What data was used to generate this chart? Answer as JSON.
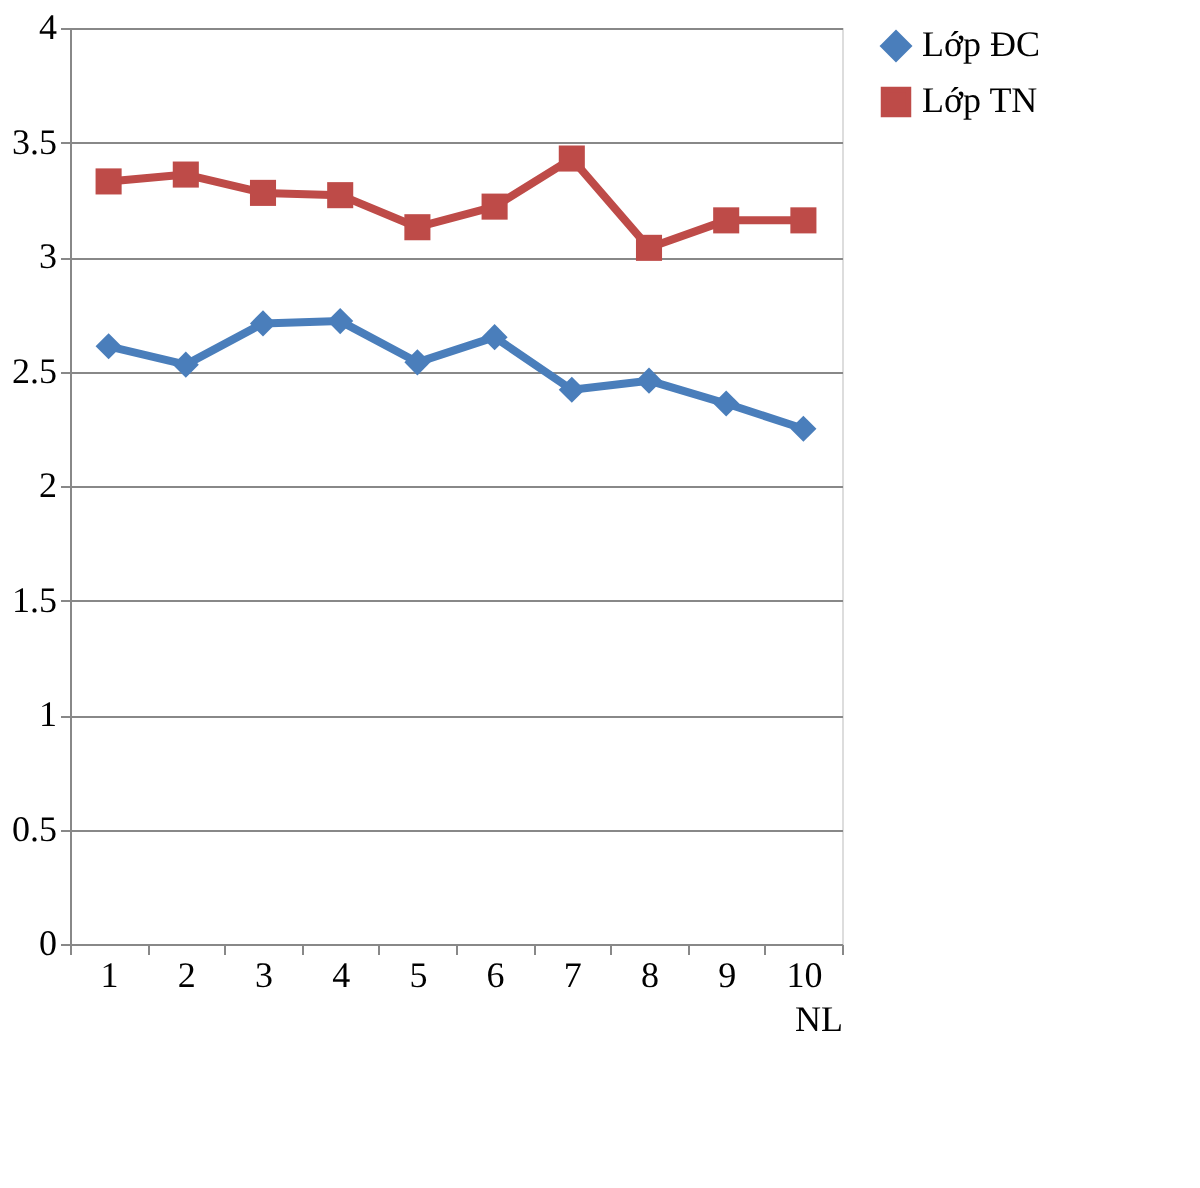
{
  "chart_data": {
    "type": "line",
    "xlabel": "NL",
    "categories": [
      "1",
      "2",
      "3",
      "4",
      "5",
      "6",
      "7",
      "8",
      "9",
      "10"
    ],
    "series": [
      {
        "name": "Lớp ĐC",
        "color": "#4a7ebb",
        "marker": "diamond",
        "values": [
          2.61,
          2.53,
          2.71,
          2.72,
          2.54,
          2.65,
          2.42,
          2.46,
          2.36,
          2.25
        ]
      },
      {
        "name": "Lớp TN",
        "color": "#be4b48",
        "marker": "square",
        "values": [
          3.33,
          3.36,
          3.28,
          3.27,
          3.13,
          3.22,
          3.43,
          3.04,
          3.16,
          3.16
        ]
      }
    ],
    "ylim": [
      0,
      4
    ],
    "yticks": [
      0,
      0.5,
      1,
      1.5,
      2,
      2.5,
      3,
      3.5,
      4
    ],
    "grid": "y",
    "legend": "right",
    "line_style": "solid"
  }
}
